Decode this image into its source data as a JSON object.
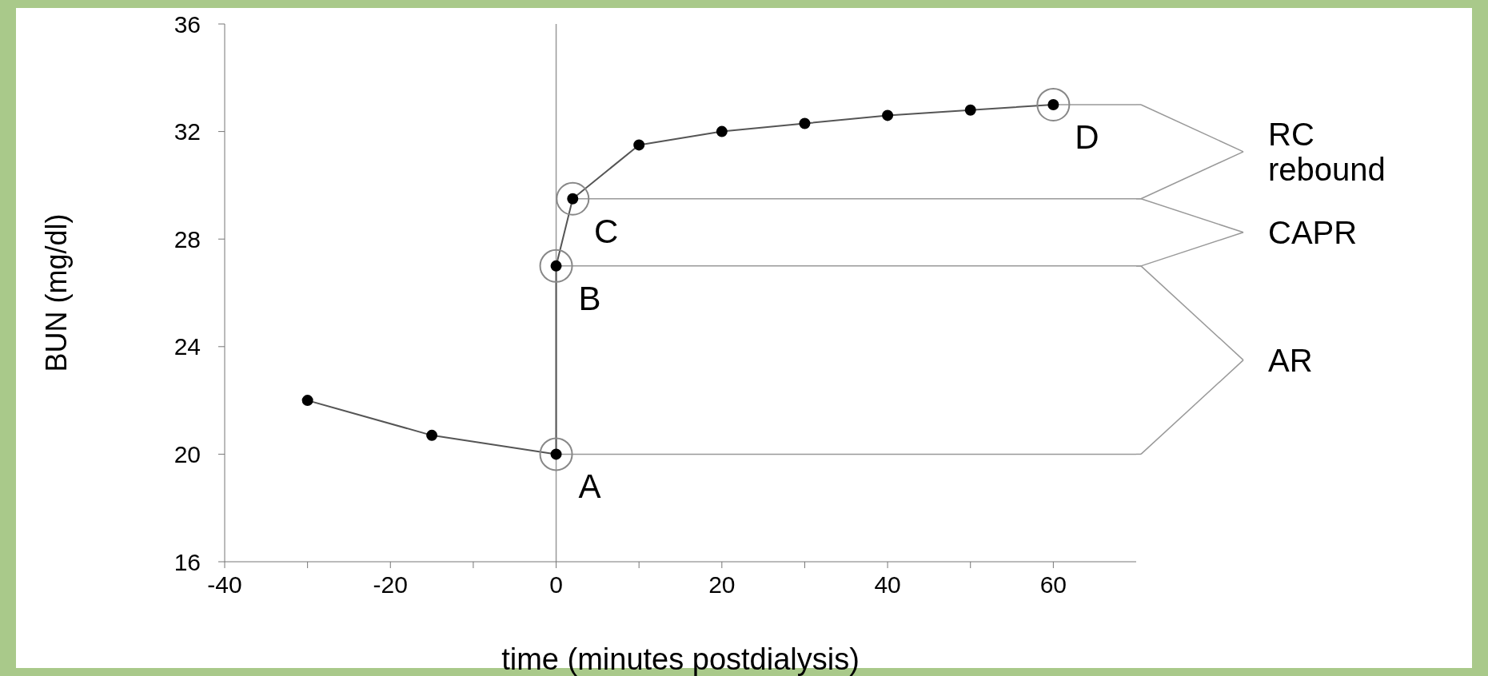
{
  "chart_data": {
    "type": "line",
    "xlabel": "time (minutes postdialysis)",
    "ylabel": "BUN (mg/dl)",
    "x": [
      -30,
      -15,
      0,
      0,
      2,
      10,
      20,
      30,
      40,
      50,
      60
    ],
    "values": [
      22,
      20.7,
      20,
      27,
      29.5,
      31.5,
      32,
      32.3,
      32.6,
      32.8,
      33
    ],
    "color": "#555555",
    "marker": "circle",
    "line_style": "solid",
    "xlim": [
      -40,
      70
    ],
    "xticks": [
      -40,
      {
        "value": -30,
        "label": null
      },
      -20,
      {
        "value": -10,
        "label": null
      },
      0,
      {
        "value": 10,
        "label": null
      },
      20,
      {
        "value": 30,
        "label": null
      },
      40,
      {
        "value": 50,
        "label": null
      },
      60
    ],
    "ylim": [
      16,
      36
    ],
    "yticks": [
      16,
      20,
      24,
      28,
      32,
      36
    ],
    "ref_lines": [
      {
        "axis": "x",
        "value": 0
      },
      {
        "axis": "y",
        "value": 33
      },
      {
        "axis": "y",
        "value": 29.5
      },
      {
        "axis": "y",
        "value": 27
      },
      {
        "axis": "y",
        "value": 20
      }
    ],
    "annotations": [
      {
        "text": "A",
        "x": 0,
        "y": 20
      },
      {
        "text": "B",
        "x": 0,
        "y": 27
      },
      {
        "text": "C",
        "x": 2,
        "y": 29.5
      },
      {
        "text": "D",
        "x": 60,
        "y": 33
      },
      "RC rebound",
      "CAPR",
      "AR"
    ]
  }
}
